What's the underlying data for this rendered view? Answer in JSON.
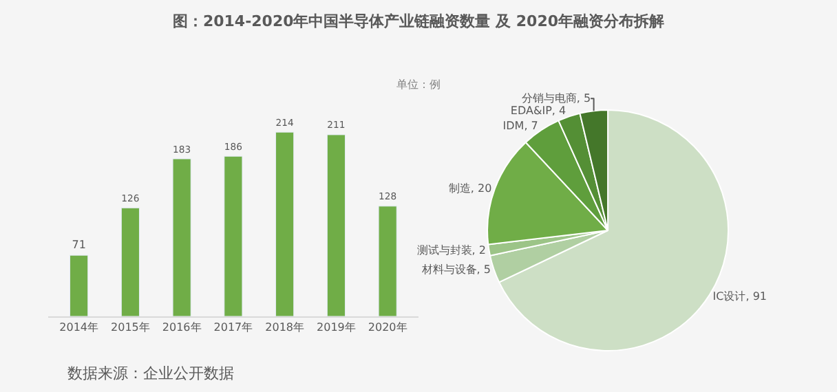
{
  "chart_data": [
    {
      "type": "bar",
      "title": "图：2014-2020年中国半导体产业链融资数量 及 2020年融资分布拆解",
      "categories": [
        "2014年",
        "2015年",
        "2016年",
        "2017年",
        "2018年",
        "2019年",
        "2020年"
      ],
      "values": [
        71,
        126,
        183,
        186,
        214,
        211,
        128
      ],
      "color": "#70ad47",
      "data_labels": true,
      "tick_labels": "x",
      "grid": false,
      "legend": false,
      "annotations": [
        "单位：例",
        "数据来源：企业公开数据"
      ]
    },
    {
      "type": "pie",
      "categories": [
        "IC设计",
        "材料与设备",
        "测试与封装",
        "制造",
        "IDM",
        "EDA&IP",
        "分销与电商"
      ],
      "values": [
        91,
        5,
        2,
        20,
        7,
        4,
        5
      ],
      "value_labels": [
        ", 91",
        ", 5",
        ", 2",
        ", 20",
        ", 7",
        ", 4",
        ", 5"
      ],
      "colors": [
        "#cddfc5",
        "#b0cfa2",
        "#9cc487",
        "#70ad47",
        "#5f9e3c",
        "#548f35",
        "#44772a"
      ],
      "legend": false
    }
  ]
}
